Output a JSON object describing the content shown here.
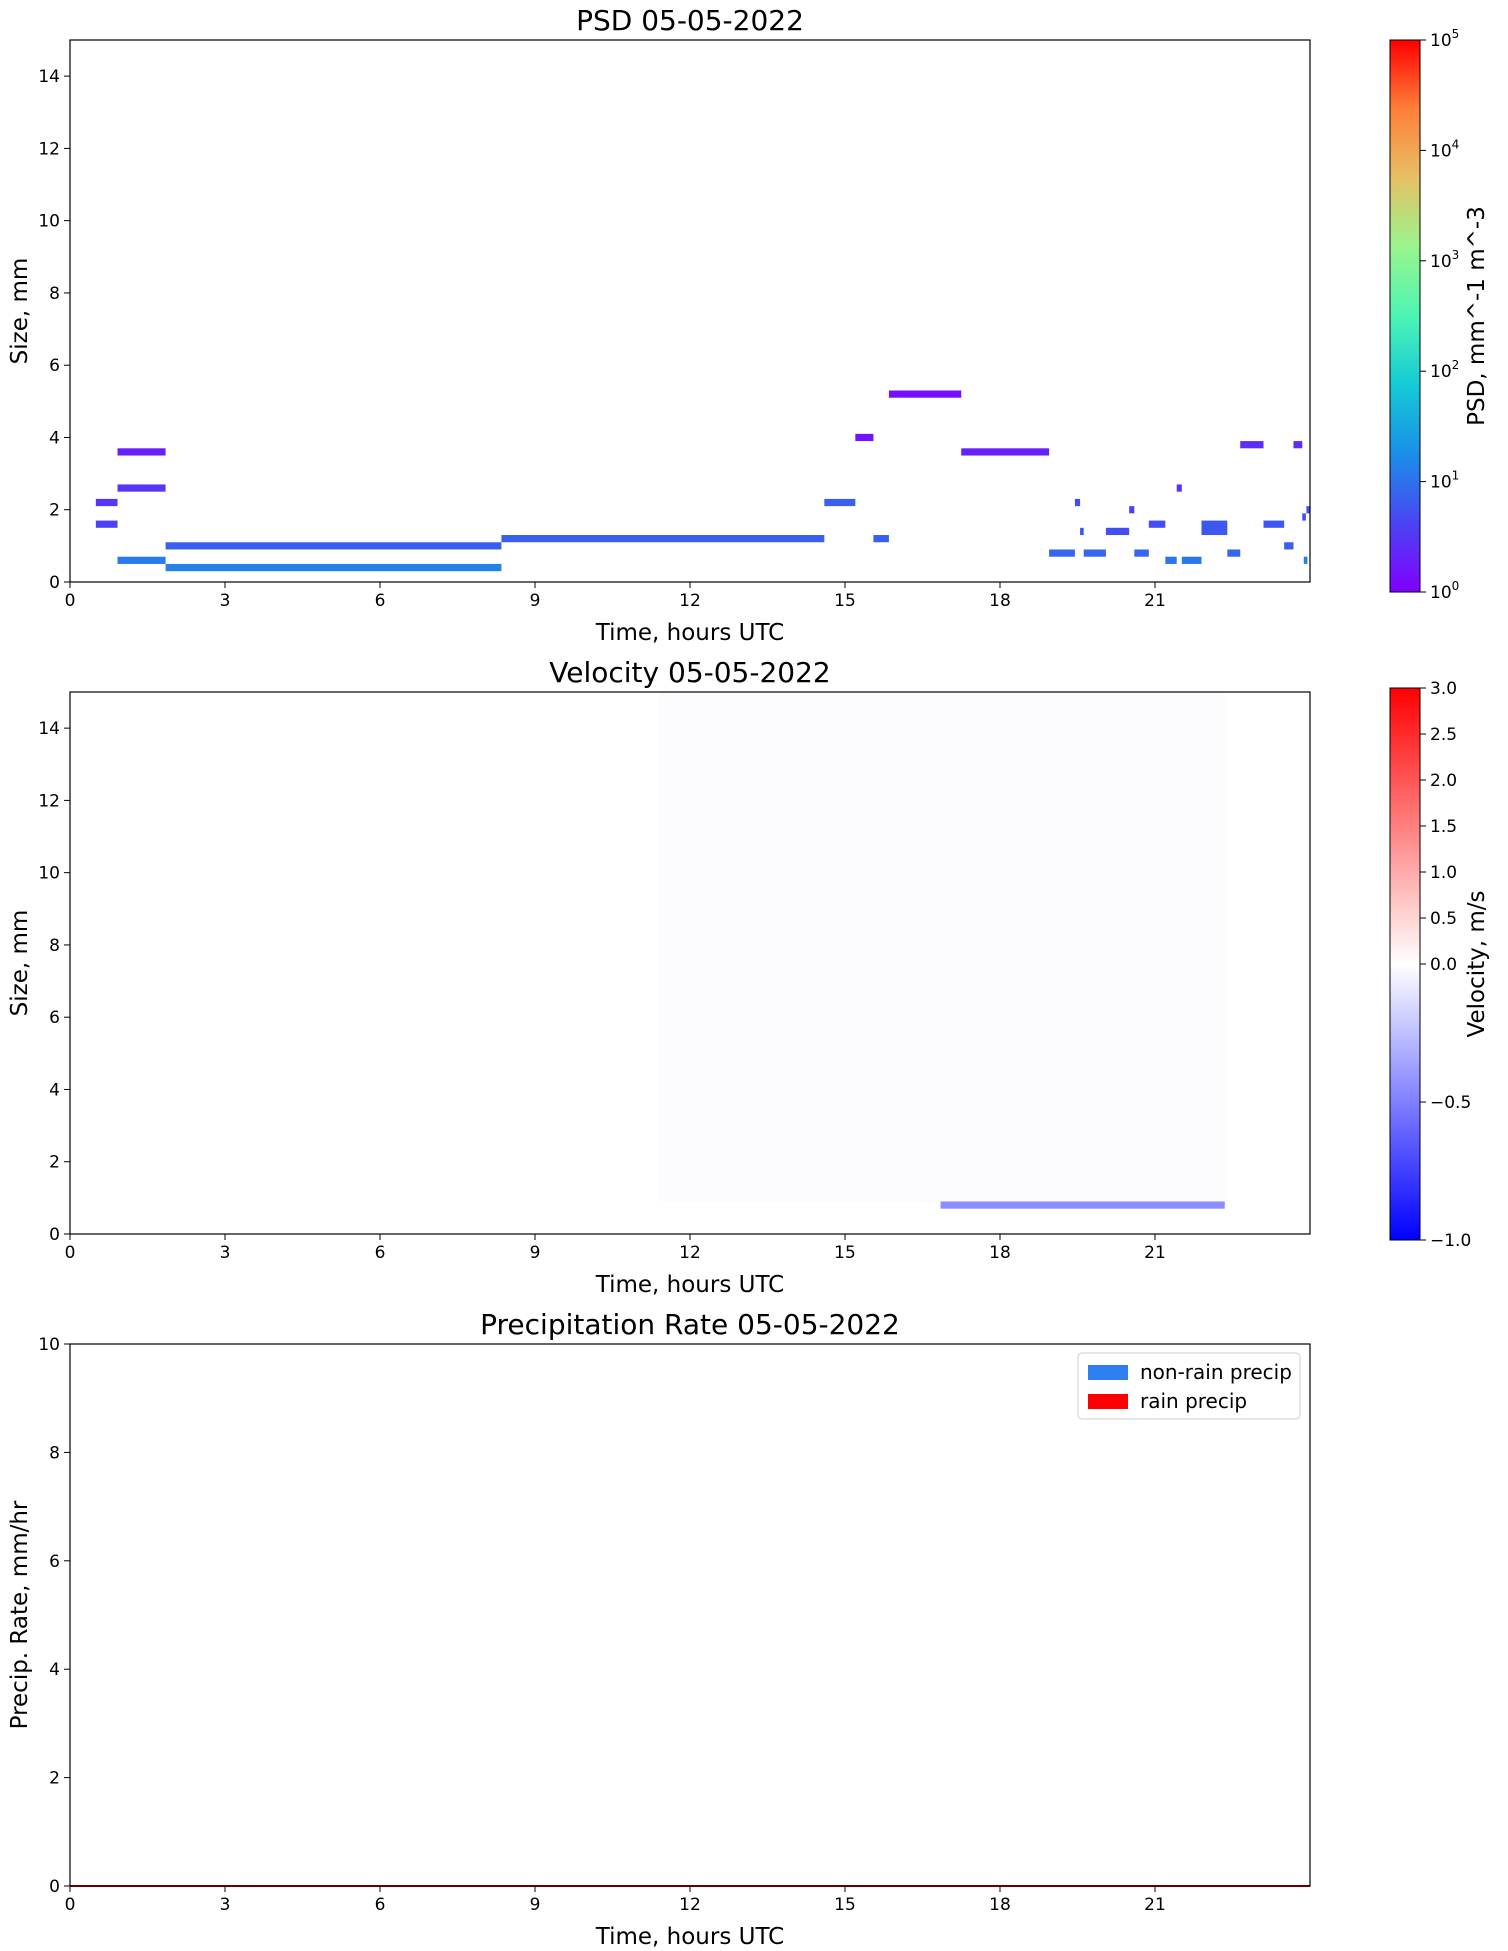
{
  "chart_data": [
    {
      "type": "heatmap",
      "title": "PSD 05-05-2022",
      "xlabel": "Time, hours UTC",
      "ylabel": "Size, mm",
      "xlim": [
        0,
        24
      ],
      "ylim": [
        0,
        15
      ],
      "xticks": [
        0,
        3,
        6,
        9,
        12,
        15,
        18,
        21
      ],
      "yticks": [
        0,
        2,
        4,
        6,
        8,
        10,
        12,
        14
      ],
      "colorbar": {
        "label": "PSD, mm^-1 m^-3",
        "scale": "log",
        "range": [
          1,
          100000
        ],
        "colormap": "rainbow",
        "ticks": [
          {
            "value": 1,
            "base": "10",
            "exp": "0"
          },
          {
            "value": 10,
            "base": "10",
            "exp": "1"
          },
          {
            "value": 100,
            "base": "10",
            "exp": "2"
          },
          {
            "value": 1000,
            "base": "10",
            "exp": "3"
          },
          {
            "value": 10000,
            "base": "10",
            "exp": "4"
          },
          {
            "value": 100000,
            "base": "10",
            "exp": "5"
          }
        ]
      },
      "cells": [
        {
          "t0": 0.5,
          "t1": 0.92,
          "s0": 2.1,
          "s1": 2.3,
          "psd": 3
        },
        {
          "t0": 0.5,
          "t1": 0.92,
          "s0": 1.5,
          "s1": 1.7,
          "psd": 4
        },
        {
          "t0": 0.92,
          "t1": 1.85,
          "s0": 3.5,
          "s1": 3.7,
          "psd": 2
        },
        {
          "t0": 0.92,
          "t1": 1.85,
          "s0": 2.5,
          "s1": 2.7,
          "psd": 3
        },
        {
          "t0": 0.92,
          "t1": 1.85,
          "s0": 0.5,
          "s1": 0.7,
          "psd": 12
        },
        {
          "t0": 1.85,
          "t1": 8.35,
          "s0": 0.9,
          "s1": 1.1,
          "psd": 7
        },
        {
          "t0": 1.85,
          "t1": 8.35,
          "s0": 0.3,
          "s1": 0.5,
          "psd": 14
        },
        {
          "t0": 8.35,
          "t1": 14.6,
          "s0": 1.1,
          "s1": 1.3,
          "psd": 7
        },
        {
          "t0": 14.6,
          "t1": 15.2,
          "s0": 2.1,
          "s1": 2.3,
          "psd": 7
        },
        {
          "t0": 15.2,
          "t1": 15.55,
          "s0": 3.9,
          "s1": 4.1,
          "psd": 1.5
        },
        {
          "t0": 15.55,
          "t1": 15.85,
          "s0": 1.1,
          "s1": 1.3,
          "psd": 7
        },
        {
          "t0": 15.85,
          "t1": 17.25,
          "s0": 5.1,
          "s1": 5.3,
          "psd": 1.3
        },
        {
          "t0": 17.25,
          "t1": 18.95,
          "s0": 3.5,
          "s1": 3.7,
          "psd": 2
        },
        {
          "t0": 18.95,
          "t1": 19.45,
          "s0": 0.7,
          "s1": 0.9,
          "psd": 8
        },
        {
          "t0": 19.45,
          "t1": 19.55,
          "s0": 2.1,
          "s1": 2.3,
          "psd": 5
        },
        {
          "t0": 19.55,
          "t1": 19.62,
          "s0": 1.3,
          "s1": 1.5,
          "psd": 6
        },
        {
          "t0": 19.62,
          "t1": 20.05,
          "s0": 0.7,
          "s1": 0.9,
          "psd": 8
        },
        {
          "t0": 20.05,
          "t1": 20.5,
          "s0": 1.3,
          "s1": 1.5,
          "psd": 5
        },
        {
          "t0": 20.5,
          "t1": 20.6,
          "s0": 1.9,
          "s1": 2.1,
          "psd": 4
        },
        {
          "t0": 20.6,
          "t1": 20.88,
          "s0": 0.7,
          "s1": 0.9,
          "psd": 8
        },
        {
          "t0": 20.88,
          "t1": 21.2,
          "s0": 1.5,
          "s1": 1.7,
          "psd": 5
        },
        {
          "t0": 21.2,
          "t1": 21.42,
          "s0": 0.5,
          "s1": 0.7,
          "psd": 11
        },
        {
          "t0": 21.42,
          "t1": 21.52,
          "s0": 2.5,
          "s1": 2.7,
          "psd": 3
        },
        {
          "t0": 21.52,
          "t1": 21.9,
          "s0": 0.5,
          "s1": 0.7,
          "psd": 11
        },
        {
          "t0": 21.9,
          "t1": 22.4,
          "s0": 1.3,
          "s1": 1.7,
          "psd": 6
        },
        {
          "t0": 22.4,
          "t1": 22.65,
          "s0": 0.7,
          "s1": 0.9,
          "psd": 8
        },
        {
          "t0": 22.65,
          "t1": 23.1,
          "s0": 3.7,
          "s1": 3.9,
          "psd": 2.5
        },
        {
          "t0": 23.1,
          "t1": 23.5,
          "s0": 1.5,
          "s1": 1.7,
          "psd": 6
        },
        {
          "t0": 23.5,
          "t1": 23.68,
          "s0": 0.9,
          "s1": 1.1,
          "psd": 7
        },
        {
          "t0": 23.68,
          "t1": 23.85,
          "s0": 3.7,
          "s1": 3.9,
          "psd": 2.5
        },
        {
          "t0": 23.85,
          "t1": 23.92,
          "s0": 1.7,
          "s1": 1.9,
          "psd": 5
        },
        {
          "t0": 23.88,
          "t1": 23.95,
          "s0": 0.5,
          "s1": 0.7,
          "psd": 12
        },
        {
          "t0": 23.93,
          "t1": 24.0,
          "s0": 1.9,
          "s1": 2.1,
          "psd": 6
        }
      ]
    },
    {
      "type": "heatmap",
      "title": "Velocity 05-05-2022",
      "xlabel": "Time, hours UTC",
      "ylabel": "Size, mm",
      "xlim": [
        0,
        24
      ],
      "ylim": [
        0,
        15
      ],
      "xticks": [
        0,
        3,
        6,
        9,
        12,
        15,
        18,
        21
      ],
      "yticks": [
        0,
        2,
        4,
        6,
        8,
        10,
        12,
        14
      ],
      "colorbar": {
        "label": "Velocity, m/s",
        "scale": "two-slope",
        "range": [
          -1.0,
          3.0
        ],
        "center": 0.0,
        "colormap": "bwr",
        "ticks": [
          "3.0",
          "2.5",
          "2.0",
          "1.5",
          "1.0",
          "0.5",
          "0.0",
          "−0.5",
          "−1.0"
        ]
      },
      "cells": [
        {
          "t0": 11.4,
          "t1": 22.35,
          "s0": 0.9,
          "s1": 15.0,
          "velocity": -0.01
        },
        {
          "t0": 16.85,
          "t1": 22.35,
          "s0": 0.7,
          "s1": 0.9,
          "velocity": -0.45
        }
      ]
    },
    {
      "type": "area",
      "title": "Precipitation Rate 05-05-2022",
      "xlabel": "Time, hours UTC",
      "ylabel": "Precip. Rate, mm/hr",
      "xlim": [
        0,
        24
      ],
      "ylim": [
        0,
        10
      ],
      "xticks": [
        0,
        3,
        6,
        9,
        12,
        15,
        18,
        21
      ],
      "yticks": [
        0,
        2,
        4,
        6,
        8,
        10
      ],
      "legend": "top-right",
      "series": [
        {
          "name": "non-rain precip",
          "color": "#2d7ff0",
          "x": [
            0,
            24
          ],
          "values": [
            0,
            0
          ]
        },
        {
          "name": "rain precip",
          "color": "#ff0000",
          "x": [
            0,
            24
          ],
          "values": [
            0,
            0
          ]
        }
      ]
    }
  ]
}
